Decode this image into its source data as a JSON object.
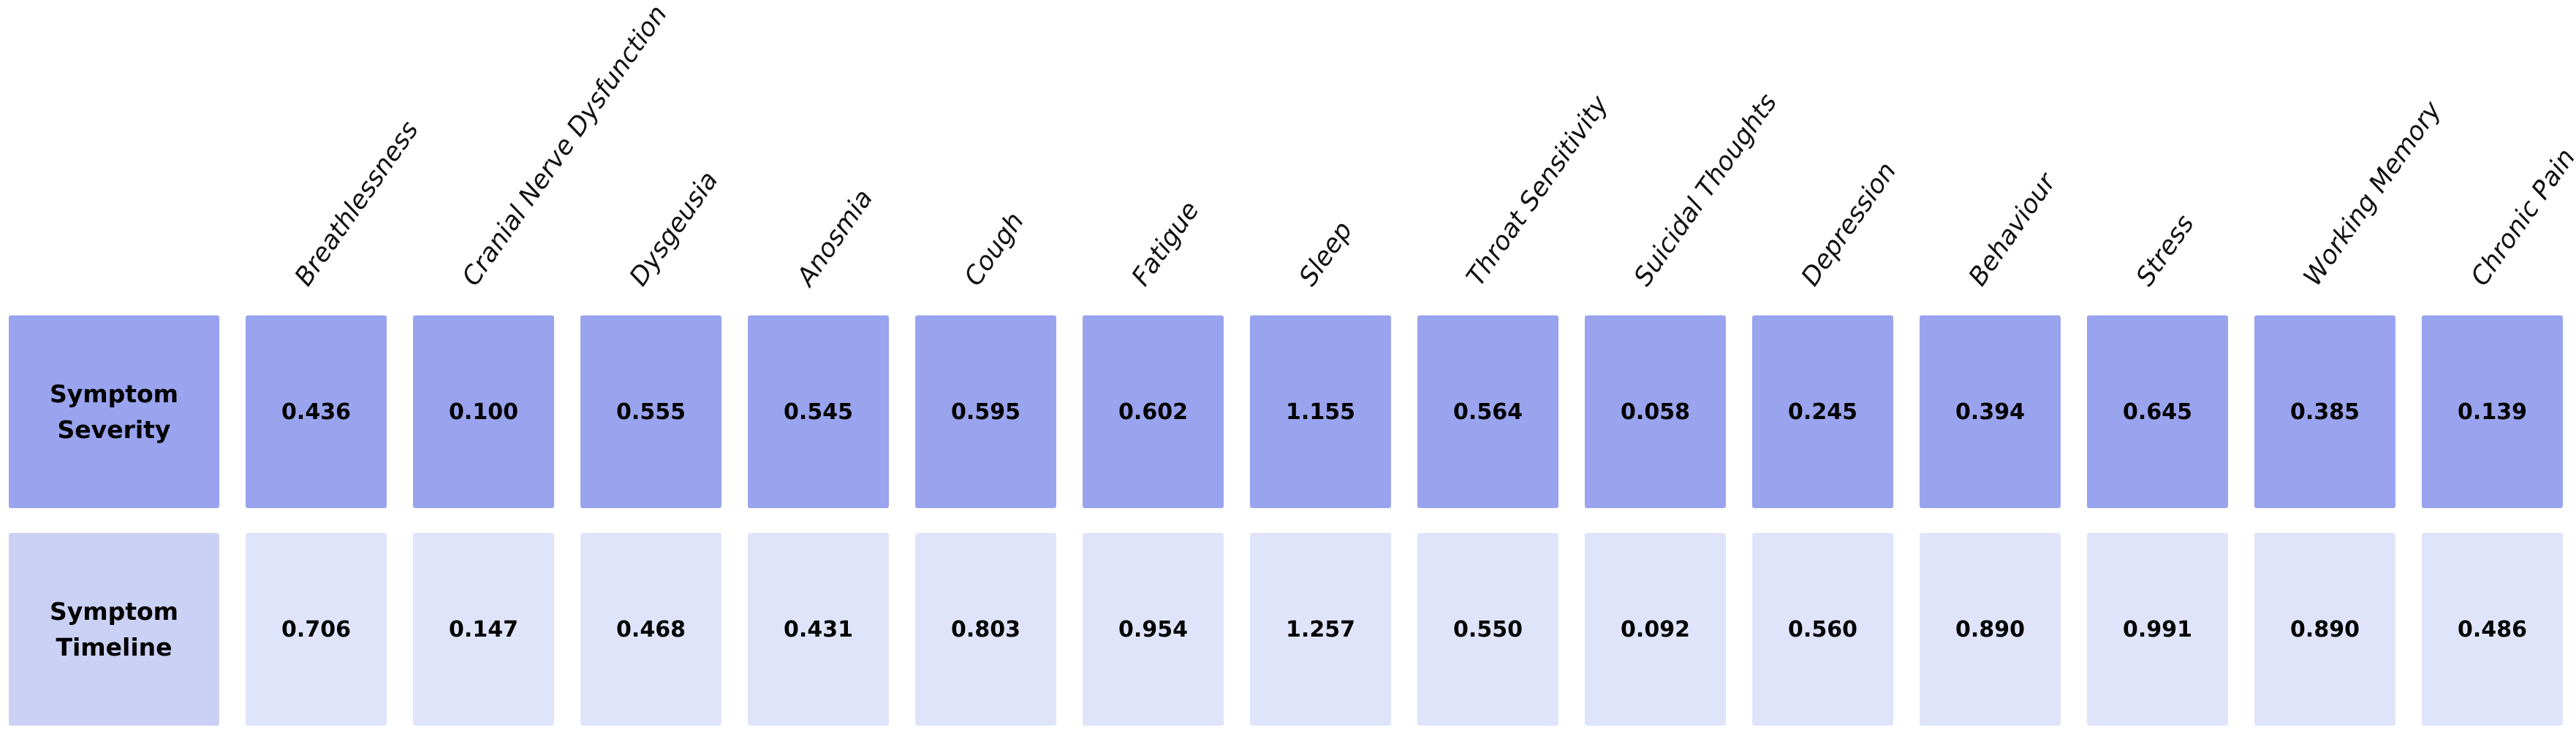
{
  "chart_data": {
    "type": "heatmap",
    "title": "",
    "columns": [
      "Breathlessness",
      "Cranial Nerve Dysfunction",
      "Dysgeusia",
      "Anosmia",
      "Cough",
      "Fatigue",
      "Sleep",
      "Throat Sensitivity",
      "Suicidal Thoughts",
      "Depression",
      "Behaviour",
      "Stress",
      "Working Memory",
      "Chronic Pain"
    ],
    "rows": [
      {
        "label": "Symptom Severity",
        "values": [
          "0.436",
          "0.100",
          "0.555",
          "0.545",
          "0.595",
          "0.602",
          "1.155",
          "0.564",
          "0.058",
          "0.245",
          "0.394",
          "0.645",
          "0.385",
          "0.139"
        ],
        "cell_color": "#99A3EE",
        "label_color": "#99A3EE"
      },
      {
        "label": "Symptom Timeline",
        "values": [
          "0.706",
          "0.147",
          "0.468",
          "0.431",
          "0.803",
          "0.954",
          "1.257",
          "0.550",
          "0.092",
          "0.560",
          "0.890",
          "0.991",
          "0.890",
          "0.486"
        ],
        "cell_color": "#E0E4FA",
        "label_color": "#CBD1F4"
      }
    ],
    "colors": {
      "background": "#FFFFFF",
      "value_text": "#000000",
      "column_label_text": "#111111"
    },
    "layout": {
      "column_label_rotation_deg": 55,
      "legend": "none",
      "grid": "off",
      "value_format": "3 decimal places"
    }
  }
}
